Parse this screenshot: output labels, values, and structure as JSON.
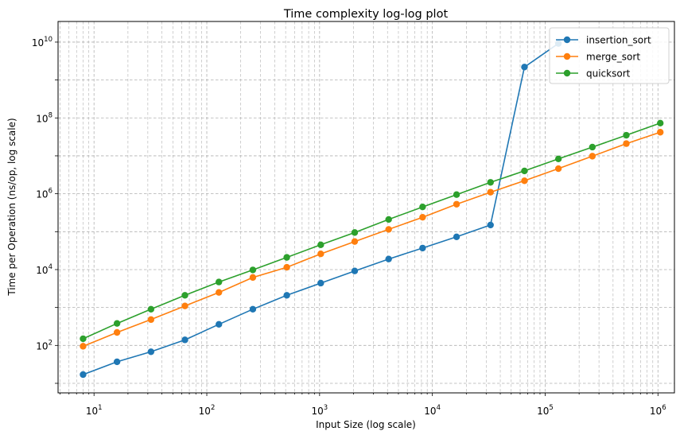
{
  "chart_data": {
    "type": "line",
    "title": "Time complexity log-log plot",
    "xlabel": "Input Size (log scale)",
    "ylabel": "Time per Operation (ns/op, log scale)",
    "xscale": "log",
    "yscale": "log",
    "xlim": [
      4.8,
      1400000
    ],
    "ylim": [
      5.6,
      35000000000
    ],
    "grid": true,
    "legend_position": "top-right",
    "x_ticks": [
      {
        "value": 10,
        "base": "10",
        "exp": "1"
      },
      {
        "value": 100,
        "base": "10",
        "exp": "2"
      },
      {
        "value": 1000,
        "base": "10",
        "exp": "3"
      },
      {
        "value": 10000,
        "base": "10",
        "exp": "4"
      },
      {
        "value": 100000,
        "base": "10",
        "exp": "5"
      },
      {
        "value": 1000000,
        "base": "10",
        "exp": "6"
      }
    ],
    "y_ticks": [
      {
        "value": 100,
        "base": "10",
        "exp": "2"
      },
      {
        "value": 10000,
        "base": "10",
        "exp": "4"
      },
      {
        "value": 1000000,
        "base": "10",
        "exp": "6"
      },
      {
        "value": 100000000,
        "base": "10",
        "exp": "8"
      },
      {
        "value": 10000000000,
        "base": "10",
        "exp": "10"
      }
    ],
    "series": [
      {
        "name": "insertion_sort",
        "color": "#1f77b4",
        "x": [
          8,
          16,
          32,
          64,
          128,
          256,
          512,
          1024,
          2048,
          4096,
          8192,
          16384,
          32768,
          65536,
          131072
        ],
        "y": [
          17,
          37,
          68,
          140,
          360,
          900,
          2100,
          4400,
          9200,
          19000,
          37000,
          73000,
          150000,
          2200000000,
          9200000000
        ]
      },
      {
        "name": "merge_sort",
        "color": "#ff7f0e",
        "x": [
          8,
          16,
          32,
          64,
          128,
          256,
          512,
          1024,
          2048,
          4096,
          8192,
          16384,
          32768,
          65536,
          131072,
          262144,
          524288,
          1048576
        ],
        "y": [
          95,
          220,
          480,
          1100,
          2500,
          6200,
          11500,
          26000,
          55000,
          115000,
          240000,
          530000,
          1100000,
          2200000,
          4600000,
          9800000,
          21000000,
          42000000
        ]
      },
      {
        "name": "quicksort",
        "color": "#2ca02c",
        "x": [
          8,
          16,
          32,
          64,
          128,
          256,
          512,
          1024,
          2048,
          4096,
          8192,
          16384,
          32768,
          65536,
          131072,
          262144,
          524288,
          1048576
        ],
        "y": [
          150,
          380,
          900,
          2100,
          4700,
          9800,
          21000,
          45000,
          95000,
          210000,
          450000,
          950000,
          2000000,
          4000000,
          8300000,
          17000000,
          35000000,
          73000000
        ]
      }
    ]
  }
}
